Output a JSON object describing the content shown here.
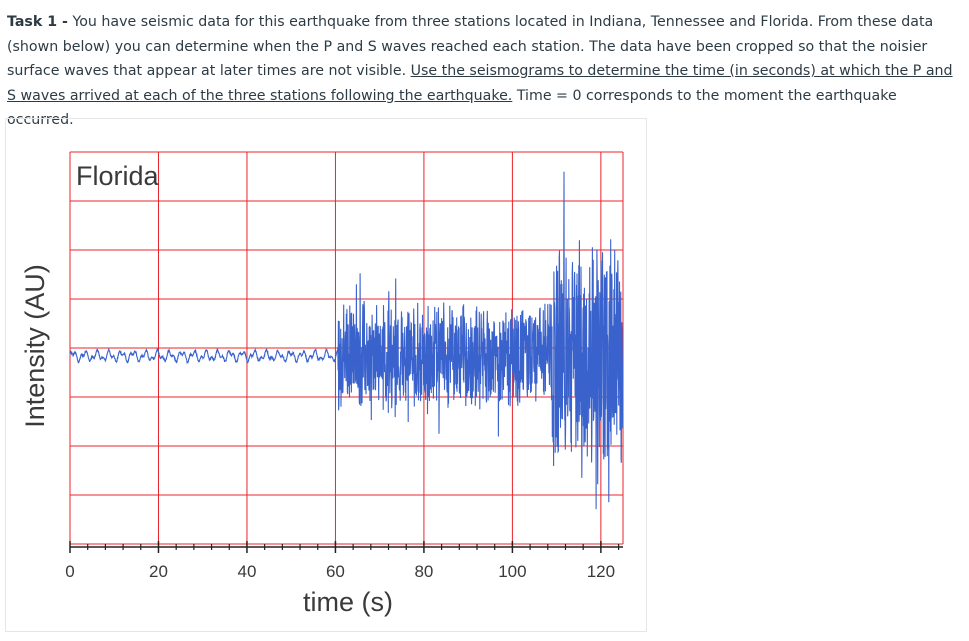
{
  "task": {
    "lead": "Task 1 -",
    "text_plain": " You have seismic data for this earthquake from three stations located in Indiana, Tennessee and Florida. From these data (shown below) you can determine when the P and S waves reached each station. The data have been cropped so that the noisier surface waves that appear at later times are not visible. ",
    "text_underlined": "Use the seismograms to determine the time (in seconds) at which the P and S waves arrived at each of the three stations following the earthquake.",
    "text_tail": " Time = 0 corresponds to the moment the earthquake occurred."
  },
  "chart_data": {
    "type": "line",
    "title": "Florida",
    "xlabel": "time (s)",
    "ylabel": "Intensity (AU)",
    "xlim": [
      0,
      125
    ],
    "x_ticks": [
      0,
      20,
      40,
      60,
      80,
      100,
      120
    ],
    "x_tick_labels": [
      "0",
      "20",
      "40",
      "60",
      "80",
      "100",
      "120"
    ],
    "grid": true,
    "colors": {
      "line": "#3a62cc",
      "grid": "#e8242b",
      "axis": "#222222"
    },
    "series": [
      {
        "description_segments": [
          {
            "t_start": 0,
            "t_end": 60.5,
            "amplitude_AU": 0.05
          },
          {
            "t_start": 60.5,
            "t_end": 109,
            "amplitude_AU": 0.45
          },
          {
            "t_start": 109,
            "t_end": 125,
            "amplitude_AU": 1.0
          }
        ]
      }
    ]
  }
}
